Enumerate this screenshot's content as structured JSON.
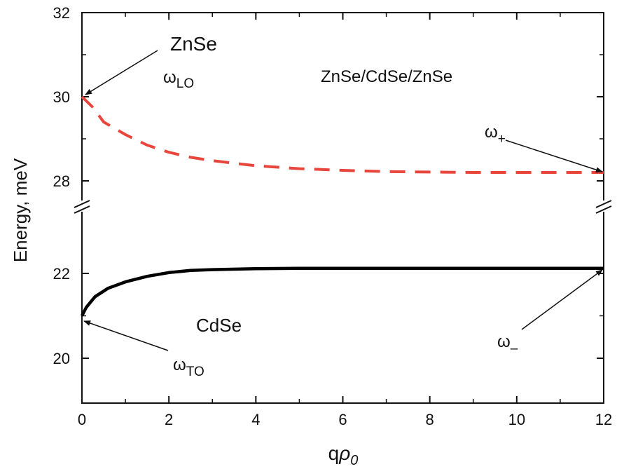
{
  "chart_data": {
    "type": "line",
    "title": "",
    "xlabel_main": "q",
    "xlabel_greek": "ρ",
    "xlabel_sub": "0",
    "ylabel": "Energy, meV",
    "xlim": [
      0,
      12
    ],
    "upper_panel": {
      "ylim": [
        27.5,
        32
      ],
      "yticks": [
        28,
        30,
        32
      ]
    },
    "lower_panel": {
      "ylim": [
        19,
        22.6
      ],
      "yticks": [
        20,
        22
      ]
    },
    "xticks": [
      0,
      2,
      4,
      6,
      8,
      10,
      12
    ],
    "axis_break": true,
    "grid": false,
    "series": [
      {
        "name": "ω+",
        "color": "#e8453c",
        "style": "dashed",
        "x": [
          0,
          0.25,
          0.5,
          1,
          1.5,
          2,
          2.5,
          3,
          4,
          5,
          6,
          7,
          8,
          9,
          10,
          11,
          12
        ],
        "y": [
          30.0,
          29.75,
          29.4,
          29.1,
          28.85,
          28.68,
          28.56,
          28.48,
          28.36,
          28.29,
          28.25,
          28.22,
          28.21,
          28.2,
          28.2,
          28.2,
          28.2
        ]
      },
      {
        "name": "ω−",
        "color": "#000000",
        "style": "solid",
        "x": [
          0,
          0.1,
          0.3,
          0.6,
          1,
          1.5,
          2,
          2.5,
          3,
          4,
          5,
          6,
          7,
          8,
          9,
          10,
          11,
          12
        ],
        "y": [
          21.0,
          21.2,
          21.45,
          21.65,
          21.8,
          21.93,
          22.02,
          22.07,
          22.09,
          22.11,
          22.12,
          22.12,
          22.12,
          22.12,
          22.12,
          22.12,
          22.12,
          22.12
        ]
      }
    ],
    "annotations": {
      "znse": "ZnSe",
      "omega_lo": {
        "base": "ω",
        "sub": "LO"
      },
      "structure": "ZnSe/CdSe/ZnSe",
      "omega_plus": {
        "base": "ω",
        "sub": "+"
      },
      "cdse": "CdSe",
      "omega_to": {
        "base": "ω",
        "sub": "TO"
      },
      "omega_minus": {
        "base": "ω",
        "sub": "–"
      }
    }
  }
}
